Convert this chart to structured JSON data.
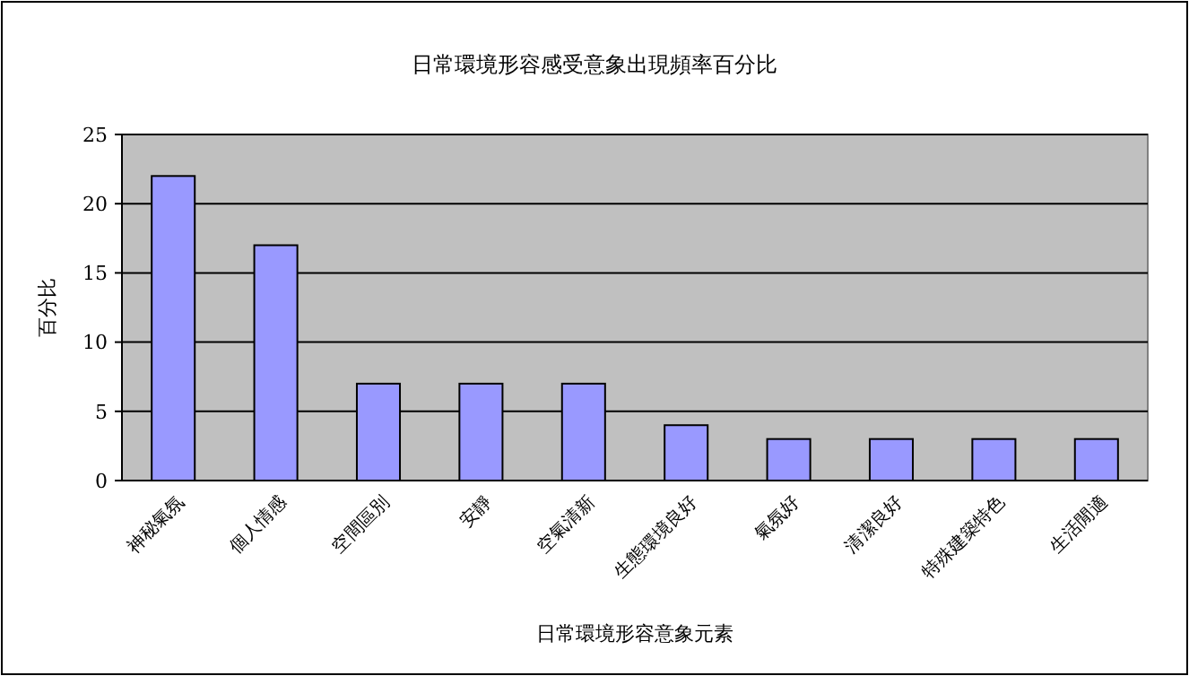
{
  "chart_data": {
    "type": "bar",
    "title": "日常環境形容感受意象出現頻率百分比",
    "xlabel": "日常環境形容意象元素",
    "ylabel": "百分比",
    "categories": [
      "神秘氣氛",
      "個人情感",
      "空間區別",
      "安靜",
      "空氣清新",
      "生態環境良好",
      "氣氛好",
      "清潔良好",
      "特殊建築特色",
      "生活閒適"
    ],
    "values": [
      22,
      17,
      7,
      7,
      7,
      4,
      3,
      3,
      3,
      3
    ],
    "color": "#9999ff",
    "ylim": [
      0,
      25
    ],
    "yticks": [
      0,
      5,
      10,
      15,
      20,
      25
    ],
    "grid": "y"
  }
}
